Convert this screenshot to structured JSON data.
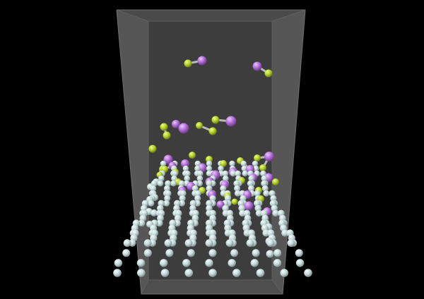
{
  "colors": {
    "background": "#000000",
    "box_back": "#3f3f3f",
    "box_side": "#5a5a5a",
    "box_edge": "#777777",
    "atom_surface": "#c9dcdc",
    "atom_green": "#b6d12a",
    "atom_purple": "#b36fd6",
    "bond": "#b9b9b9"
  },
  "scene": {
    "subject": "simulation-box",
    "atom_types": [
      "surface-atom",
      "green-atom",
      "purple-atom"
    ]
  }
}
